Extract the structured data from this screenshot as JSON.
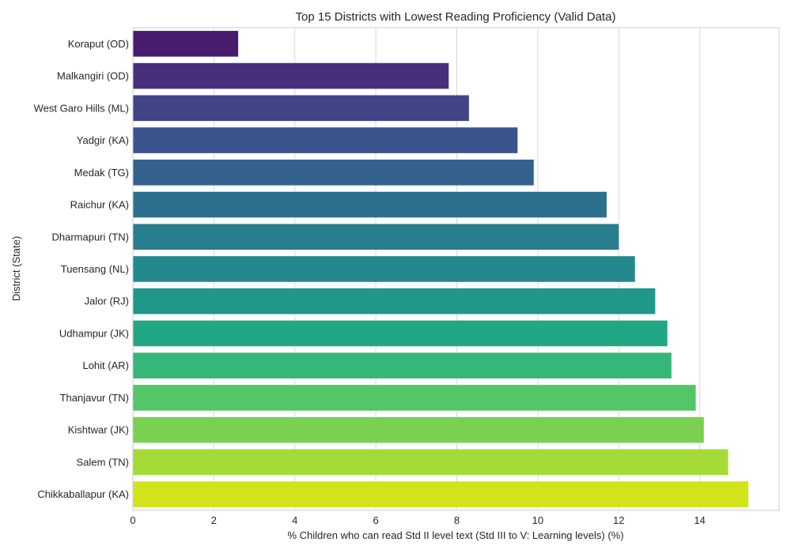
{
  "chart_data": {
    "type": "bar",
    "orientation": "horizontal",
    "title": "Top 15 Districts with Lowest Reading Proficiency (Valid Data)",
    "xlabel": "% Children who can read Std II level text (Std III to V: Learning levels) (%)",
    "ylabel": "District (State)",
    "xlim": [
      0,
      15.96
    ],
    "xticks": [
      0,
      2,
      4,
      6,
      8,
      10,
      12,
      14
    ],
    "grid": true,
    "categories": [
      "Koraput (OD)",
      "Malkangiri (OD)",
      "West Garo Hills (ML)",
      "Yadgir (KA)",
      "Medak (TG)",
      "Raichur (KA)",
      "Dharmapuri (TN)",
      "Tuensang (NL)",
      "Jalor (RJ)",
      "Udhampur (JK)",
      "Lohit (AR)",
      "Thanjavur (TN)",
      "Kishtwar (JK)",
      "Salem (TN)",
      "Chikkaballapur (KA)"
    ],
    "values": [
      2.6,
      7.8,
      8.3,
      9.5,
      9.9,
      11.7,
      12.0,
      12.4,
      12.9,
      13.2,
      13.3,
      13.9,
      14.1,
      14.7,
      15.2
    ],
    "colors": [
      "#481c6e",
      "#472f7d",
      "#414487",
      "#3a548c",
      "#34618d",
      "#2d708e",
      "#287d8e",
      "#23898e",
      "#1f978b",
      "#22a785",
      "#35b779",
      "#54c568",
      "#7ad151",
      "#a5db36",
      "#d2e21b"
    ]
  }
}
